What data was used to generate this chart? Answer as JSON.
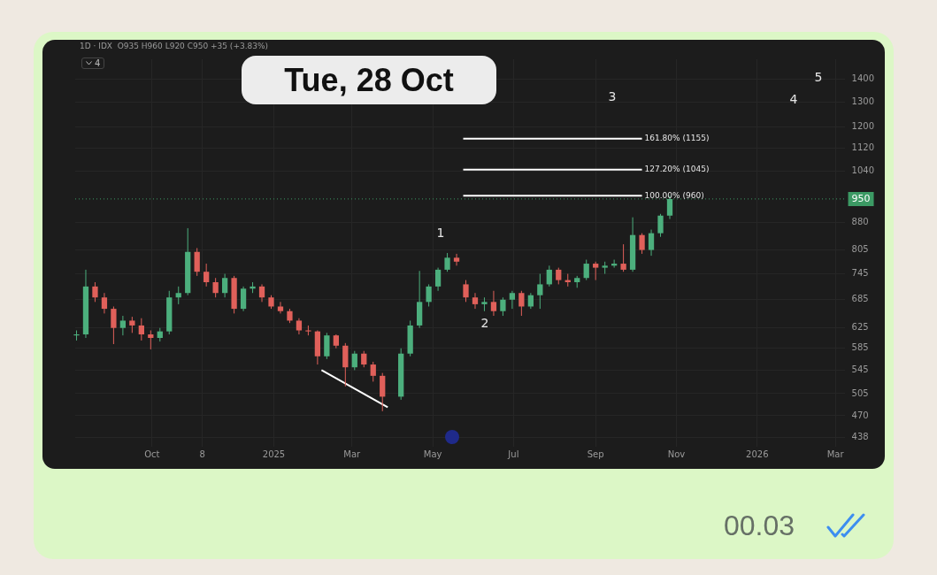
{
  "chart_data": {
    "type": "candlestick",
    "subtitle": "1D · IDX  O935 H960 L920 C950 +35 (+3.83%)",
    "x": [
      "2024-08-05",
      "2024-08-12",
      "2024-08-19",
      "2024-08-26",
      "2024-09-02",
      "2024-09-09",
      "2024-09-16",
      "2024-09-23",
      "2024-09-30",
      "2024-10-07",
      "2024-10-14",
      "2024-10-21",
      "2024-10-28",
      "2024-11-04",
      "2024-11-11",
      "2024-11-18",
      "2024-11-25",
      "2024-12-02",
      "2024-12-09",
      "2024-12-16",
      "2024-12-23",
      "2024-12-30",
      "2025-01-06",
      "2025-01-13",
      "2025-01-20",
      "2025-01-27",
      "2025-02-03",
      "2025-02-10",
      "2025-02-17",
      "2025-02-24",
      "2025-03-03",
      "2025-03-10",
      "2025-03-17",
      "2025-03-24",
      "2025-04-07",
      "2025-04-14",
      "2025-04-21",
      "2025-04-28",
      "2025-05-05",
      "2025-05-12",
      "2025-05-19",
      "2025-05-26",
      "2025-06-02",
      "2025-06-09",
      "2025-06-16",
      "2025-06-23",
      "2025-06-30",
      "2025-07-07",
      "2025-07-14",
      "2025-07-21",
      "2025-07-28",
      "2025-08-04",
      "2025-08-11",
      "2025-08-18",
      "2025-08-25",
      "2025-09-01",
      "2025-09-08",
      "2025-09-15",
      "2025-09-22",
      "2025-09-29",
      "2025-10-06",
      "2025-10-13",
      "2025-10-20",
      "2025-10-27"
    ],
    "ohlc": [
      [
        610,
        620,
        600,
        612
      ],
      [
        612,
        755,
        605,
        715
      ],
      [
        715,
        725,
        680,
        690
      ],
      [
        690,
        700,
        655,
        665
      ],
      [
        665,
        670,
        593,
        625
      ],
      [
        625,
        650,
        610,
        640
      ],
      [
        640,
        648,
        615,
        630
      ],
      [
        630,
        645,
        600,
        612
      ],
      [
        612,
        620,
        583,
        605
      ],
      [
        605,
        625,
        598,
        618
      ],
      [
        618,
        705,
        612,
        690
      ],
      [
        690,
        715,
        675,
        700
      ],
      [
        700,
        864,
        695,
        800
      ],
      [
        800,
        810,
        740,
        750
      ],
      [
        750,
        770,
        715,
        725
      ],
      [
        725,
        735,
        690,
        700
      ],
      [
        700,
        745,
        690,
        735
      ],
      [
        735,
        740,
        655,
        665
      ],
      [
        665,
        715,
        660,
        710
      ],
      [
        710,
        725,
        700,
        715
      ],
      [
        715,
        720,
        680,
        690
      ],
      [
        690,
        695,
        665,
        670
      ],
      [
        670,
        680,
        655,
        660
      ],
      [
        660,
        665,
        635,
        640
      ],
      [
        640,
        645,
        612,
        620
      ],
      [
        620,
        630,
        610,
        618
      ],
      [
        618,
        620,
        555,
        570
      ],
      [
        570,
        615,
        565,
        610
      ],
      [
        610,
        612,
        585,
        590
      ],
      [
        590,
        595,
        517,
        550
      ],
      [
        550,
        580,
        545,
        575
      ],
      [
        575,
        580,
        550,
        555
      ],
      [
        555,
        560,
        525,
        535
      ],
      [
        535,
        540,
        477,
        500
      ],
      [
        500,
        585,
        495,
        575
      ],
      [
        575,
        640,
        570,
        630
      ],
      [
        630,
        752,
        625,
        680
      ],
      [
        680,
        720,
        670,
        715
      ],
      [
        715,
        760,
        705,
        755
      ],
      [
        755,
        797,
        750,
        785
      ],
      [
        785,
        795,
        765,
        775
      ],
      [
        720,
        730,
        680,
        690
      ],
      [
        690,
        700,
        665,
        675
      ],
      [
        675,
        690,
        660,
        680
      ],
      [
        680,
        705,
        650,
        660
      ],
      [
        660,
        690,
        650,
        685
      ],
      [
        685,
        705,
        665,
        700
      ],
      [
        700,
        705,
        650,
        670
      ],
      [
        670,
        700,
        665,
        695
      ],
      [
        695,
        745,
        665,
        720
      ],
      [
        720,
        765,
        715,
        755
      ],
      [
        755,
        760,
        720,
        730
      ],
      [
        730,
        745,
        715,
        725
      ],
      [
        725,
        740,
        712,
        735
      ],
      [
        735,
        780,
        730,
        770
      ],
      [
        770,
        775,
        730,
        760
      ],
      [
        760,
        775,
        745,
        765
      ],
      [
        765,
        780,
        760,
        770
      ],
      [
        770,
        820,
        750,
        755
      ],
      [
        755,
        895,
        750,
        845
      ],
      [
        845,
        850,
        795,
        805
      ],
      [
        805,
        860,
        790,
        850
      ],
      [
        850,
        905,
        840,
        900
      ],
      [
        900,
        960,
        890,
        950
      ]
    ],
    "colors": [
      "#4caf7d",
      "#4caf7d",
      "#e0605a",
      "#e0605a",
      "#e0605a",
      "#4caf7d",
      "#e0605a",
      "#e0605a",
      "#e0605a",
      "#4caf7d",
      "#4caf7d",
      "#4caf7d",
      "#4caf7d",
      "#e0605a",
      "#e0605a",
      "#e0605a",
      "#4caf7d",
      "#e0605a",
      "#4caf7d",
      "#4caf7d",
      "#e0605a",
      "#e0605a",
      "#e0605a",
      "#e0605a",
      "#e0605a",
      "#e0605a",
      "#e0605a",
      "#4caf7d",
      "#e0605a",
      "#e0605a",
      "#4caf7d",
      "#e0605a",
      "#e0605a",
      "#e0605a",
      "#4caf7d",
      "#4caf7d",
      "#4caf7d",
      "#4caf7d",
      "#4caf7d",
      "#4caf7d",
      "#e0605a",
      "#e0605a",
      "#e0605a",
      "#4caf7d",
      "#e0605a",
      "#4caf7d",
      "#4caf7d",
      "#e0605a",
      "#4caf7d",
      "#4caf7d",
      "#4caf7d",
      "#e0605a",
      "#e0605a",
      "#4caf7d",
      "#4caf7d",
      "#e0605a",
      "#4caf7d",
      "#4caf7d",
      "#e0605a",
      "#4caf7d",
      "#e0605a",
      "#4caf7d",
      "#4caf7d",
      "#4caf7d"
    ],
    "series": [
      {
        "type": "line",
        "x": [
          "2025-05-24",
          "2025-10-06"
        ],
        "values": [
          1155,
          1155
        ],
        "color": "#ffffff"
      },
      {
        "type": "line",
        "x": [
          "2025-05-24",
          "2025-10-06"
        ],
        "values": [
          1045,
          1045
        ],
        "color": "#ffffff"
      },
      {
        "type": "line",
        "x": [
          "2025-05-24",
          "2025-10-06"
        ],
        "values": [
          960,
          960
        ],
        "color": "#ffffff"
      },
      {
        "type": "line",
        "x": [
          "2025-02-06",
          "2025-03-28"
        ],
        "values": [
          545,
          483
        ],
        "color": "#ffffff"
      }
    ],
    "ref_lines": [
      {
        "axis": "y",
        "value": 950,
        "label": "950",
        "color": "#3c9a64",
        "line_style": "dotted"
      }
    ],
    "annotations": [
      "Tue, 28 Oct",
      "4",
      "00.03",
      {
        "text": "161.80% (1155)",
        "x": "2025-10-08",
        "y": 1155
      },
      {
        "text": "127.20% (1045)",
        "x": "2025-10-08",
        "y": 1045
      },
      {
        "text": "100.00% (960)",
        "x": "2025-10-08",
        "y": 960
      },
      "1",
      "2",
      "3",
      "4",
      "5"
    ],
    "xlim": [
      "2024-08-04",
      "2026-03-08"
    ],
    "xticks": [
      {
        "value": "2024-10-01",
        "label": "Oct"
      },
      {
        "value": "2024-11-08",
        "label": "8"
      },
      {
        "value": "2025-01-01",
        "label": "2025"
      },
      {
        "value": "2025-03-01",
        "label": "Mar"
      },
      {
        "value": "2025-05-01",
        "label": "May"
      },
      {
        "value": "2025-07-01",
        "label": "Jul"
      },
      {
        "value": "2025-09-01",
        "label": "Sep"
      },
      {
        "value": "2025-11-01",
        "label": "Nov"
      },
      {
        "value": "2026-01-01",
        "label": "2026"
      },
      {
        "value": "2026-03-01",
        "label": "Mar"
      }
    ],
    "ylim": [
      425,
      1495
    ],
    "yticks": [
      438,
      470,
      505,
      545,
      585,
      625,
      685,
      745,
      805,
      880,
      1040,
      1120,
      1200,
      1300,
      1400
    ],
    "log": true,
    "grid": true,
    "legend": false
  }
}
